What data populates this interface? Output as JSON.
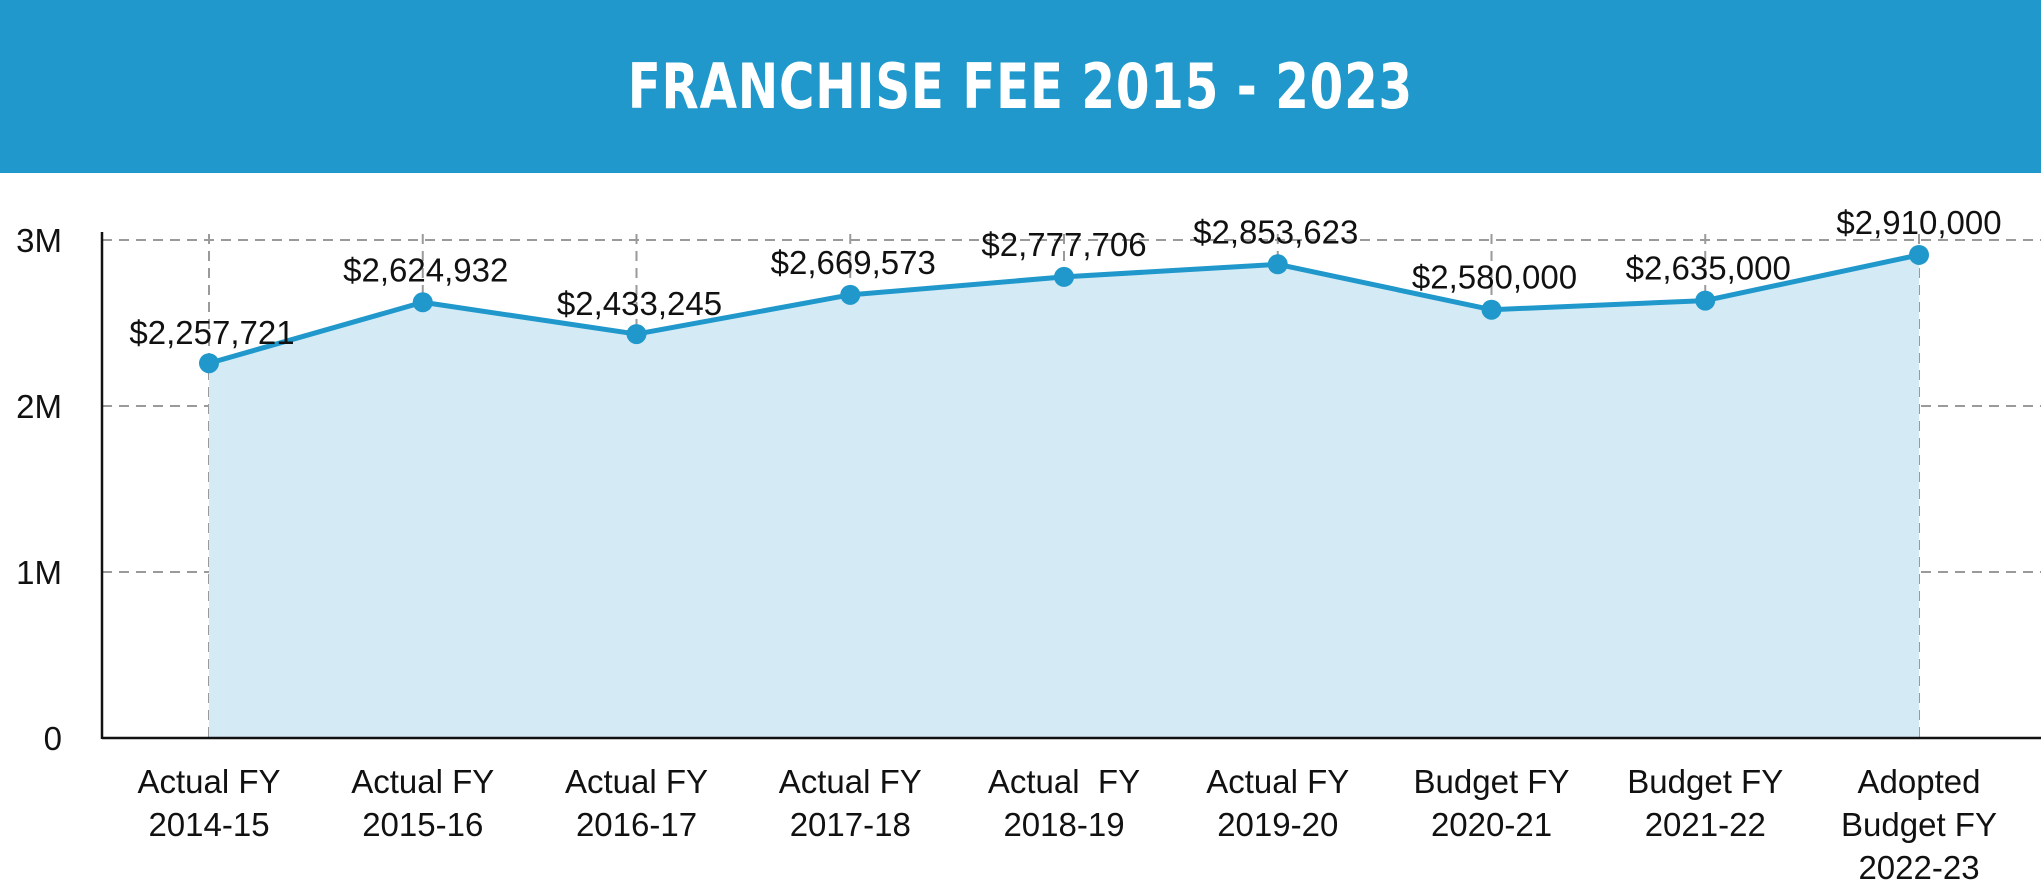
{
  "header": {
    "title": "FRANCHISE FEE 2015 - 2023"
  },
  "colors": {
    "header_bg": "#2098cb",
    "line": "#2098cb",
    "area_fill": "#d4ebf6",
    "grid": "#9a9a9a",
    "axis": "#111111"
  },
  "chart_data": {
    "type": "area",
    "title": "FRANCHISE FEE 2015 - 2023",
    "xlabel": "",
    "ylabel": "",
    "categories": [
      [
        "Actual FY",
        "2014-15"
      ],
      [
        "Actual FY",
        "2015-16"
      ],
      [
        "Actual FY",
        "2016-17"
      ],
      [
        "Actual FY",
        "2017-18"
      ],
      [
        "Actual  FY",
        "2018-19"
      ],
      [
        "Actual FY",
        "2019-20"
      ],
      [
        "Budget FY",
        "2020-21"
      ],
      [
        "Budget FY",
        "2021-22"
      ],
      [
        "Adopted",
        "Budget FY",
        "2022-23"
      ]
    ],
    "values": [
      2257721,
      2624932,
      2433245,
      2669573,
      2777706,
      2853623,
      2580000,
      2635000,
      2910000
    ],
    "data_labels": [
      "$2,257,721",
      "$2,624,932",
      "$2,433,245",
      "$2,669,573",
      "$2,777,706",
      "$2,853,623",
      "$2,580,000",
      "$2,635,000",
      "$2,910,000"
    ],
    "ylim": [
      0,
      3000000
    ],
    "yticks": [
      {
        "value": 0,
        "label": "0"
      },
      {
        "value": 1000000,
        "label": "1M"
      },
      {
        "value": 2000000,
        "label": "2M"
      },
      {
        "value": 3000000,
        "label": "3M"
      }
    ],
    "grid": true,
    "grid_style": "dashed",
    "legend": "none",
    "markers": true
  }
}
